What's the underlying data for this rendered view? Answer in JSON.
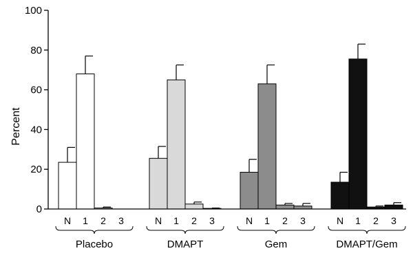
{
  "chart_data": {
    "type": "bar",
    "ylabel": "Percent",
    "xlabel": "",
    "title": "",
    "ylim": [
      0,
      100
    ],
    "yticks": [
      0,
      20,
      40,
      60,
      80,
      100
    ],
    "grid": false,
    "legend": "none",
    "error_bars": true,
    "groups": [
      {
        "name": "Placebo",
        "color": "#ffffff",
        "categories": [
          "N",
          "1",
          "2",
          "3"
        ],
        "values": [
          23.5,
          68,
          0.5,
          0
        ],
        "errors": [
          7.5,
          9,
          0.5,
          0
        ]
      },
      {
        "name": "DMAPT",
        "color": "#d9d9d9",
        "categories": [
          "N",
          "1",
          "2",
          "3"
        ],
        "values": [
          25.5,
          65,
          2.5,
          0.3
        ],
        "errors": [
          6,
          7.5,
          1,
          0.2
        ]
      },
      {
        "name": "Gem",
        "color": "#8c8c8c",
        "categories": [
          "N",
          "1",
          "2",
          "3"
        ],
        "values": [
          18.5,
          63,
          2,
          1.5
        ],
        "errors": [
          6.5,
          9.5,
          0.8,
          1.3
        ]
      },
      {
        "name": "DMAPT/Gem",
        "color": "#111111",
        "categories": [
          "N",
          "1",
          "2",
          "3"
        ],
        "values": [
          13.5,
          75.5,
          1,
          2
        ],
        "errors": [
          5,
          7.5,
          0.5,
          1.2
        ]
      }
    ]
  }
}
